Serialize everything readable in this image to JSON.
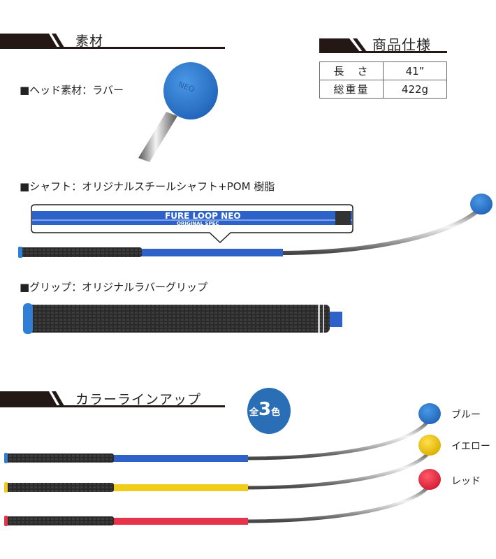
{
  "sections": {
    "material": {
      "title": "素材"
    },
    "spec": {
      "title": "商品仕様"
    },
    "lineup": {
      "title": "カラーラインアップ"
    }
  },
  "spec_table": [
    {
      "key": "長　さ",
      "value": "41”"
    },
    {
      "key": "総重量",
      "value": "422g"
    }
  ],
  "materials": {
    "head": "■ヘッド素材：ラバー",
    "shaft": "■シャフト：オリジナルスチールシャフト+POM 樹脂",
    "grip": "■グリップ：オリジナルラバーグリップ"
  },
  "shaft_print": {
    "brand": "FURE LOOP NEO",
    "sub": "ORIGINAL SPEC"
  },
  "head_print": "NEO",
  "badge": {
    "prefix": "全",
    "number": "3",
    "suffix": "色",
    "color": "#2a6fb5"
  },
  "colors": [
    {
      "name": "ブルー",
      "hex": "#2f7fd6"
    },
    {
      "name": "イエロー",
      "hex": "#f2cc1a"
    },
    {
      "name": "レッド",
      "hex": "#e8344a"
    }
  ],
  "shaft_blue": "#2f62c8"
}
